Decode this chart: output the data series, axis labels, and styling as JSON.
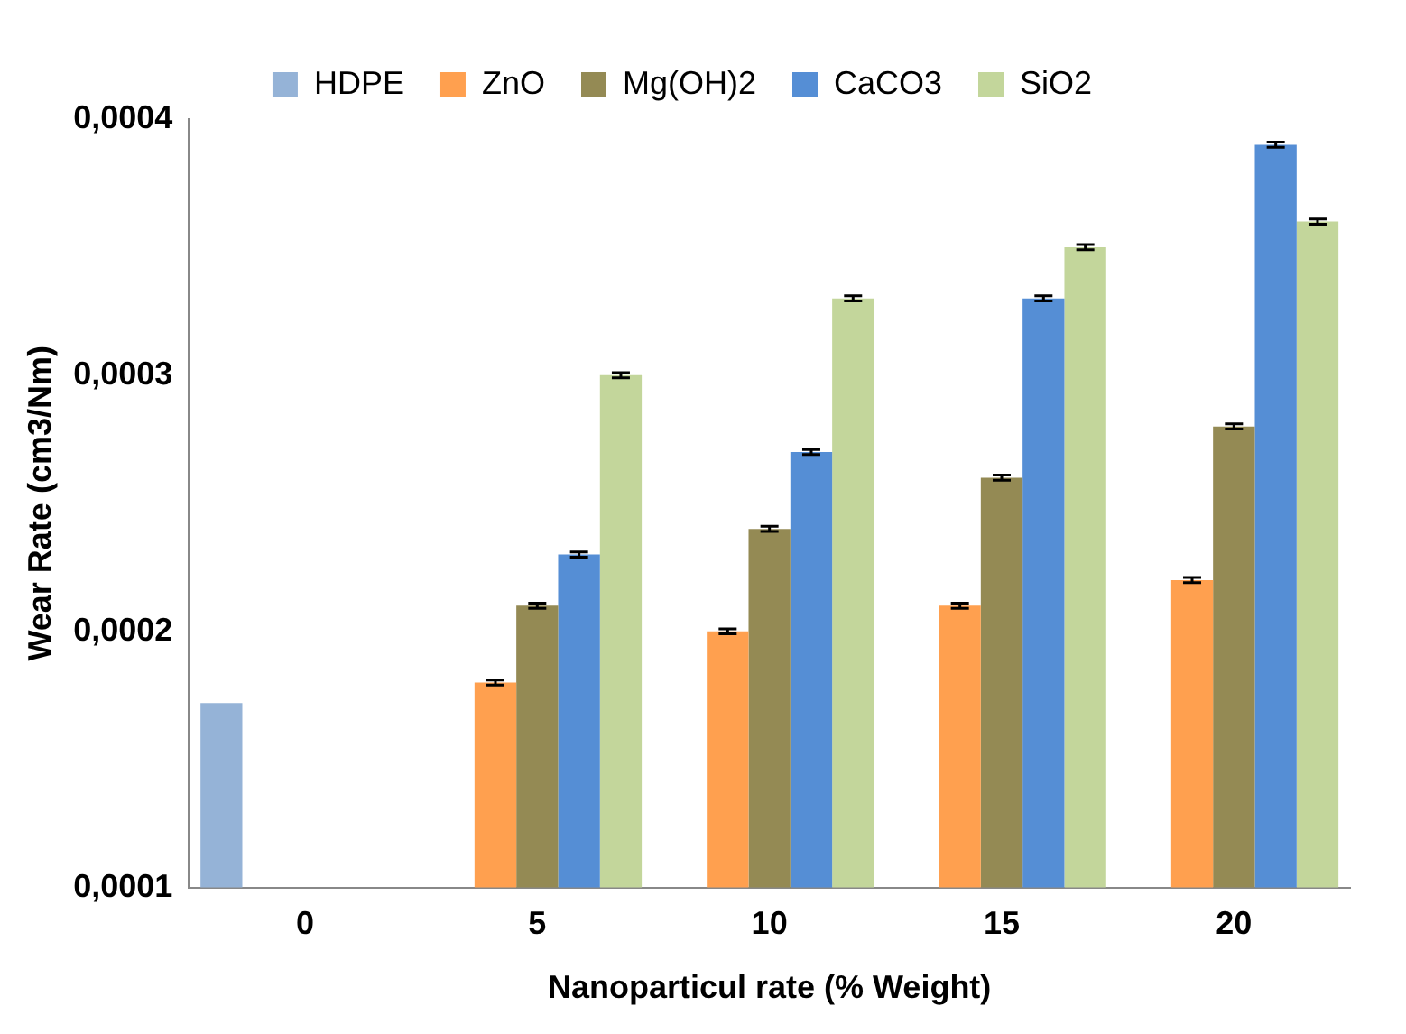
{
  "chart_data": {
    "type": "bar",
    "xlabel": "Nanoparticul rate (% Weight)",
    "ylabel": "Wear Rate (cm3/Nm)",
    "categories": [
      "0",
      "5",
      "10",
      "15",
      "20"
    ],
    "series": [
      {
        "name": "HDPE",
        "color": "#95b3d7",
        "values": [
          0.000172,
          null,
          null,
          null,
          null
        ]
      },
      {
        "name": "ZnO",
        "color": "#ffa04f",
        "values": [
          null,
          0.00018,
          0.0002,
          0.00021,
          0.00022
        ],
        "errors": [
          null,
          1e-06,
          1e-06,
          1e-06,
          1e-06
        ]
      },
      {
        "name": "Mg(OH)2",
        "color": "#948a54",
        "values": [
          null,
          0.00021,
          0.00024,
          0.00026,
          0.00028
        ],
        "errors": [
          null,
          1e-06,
          1e-06,
          1e-06,
          1e-06
        ]
      },
      {
        "name": "CaCO3",
        "color": "#558ed5",
        "values": [
          null,
          0.00023,
          0.00027,
          0.00033,
          0.00039
        ],
        "errors": [
          null,
          1e-06,
          1e-06,
          1e-06,
          1e-06
        ]
      },
      {
        "name": "SiO2",
        "color": "#c3d69b",
        "values": [
          null,
          0.0003,
          0.00033,
          0.00035,
          0.00036
        ],
        "errors": [
          null,
          1e-06,
          1e-06,
          1e-06,
          1e-06
        ]
      }
    ],
    "ylim": [
      0.0001,
      0.0004
    ],
    "yticks": [
      {
        "value": 0.0001,
        "label": "0,0001"
      },
      {
        "value": 0.0002,
        "label": "0,0002"
      },
      {
        "value": 0.0003,
        "label": "0,0003"
      },
      {
        "value": 0.0004,
        "label": "0,0004"
      }
    ],
    "grid": false,
    "legend": "top"
  }
}
